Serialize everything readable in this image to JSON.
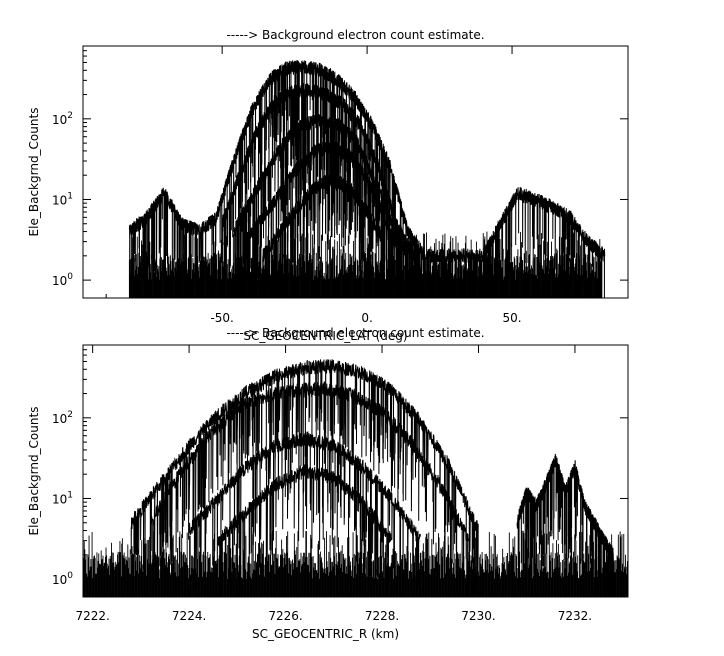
{
  "chart_data": [
    {
      "type": "line",
      "title": "-----> Background electron count estimate.",
      "xlabel": "SC_GEOCENTRIC_LAT (deg)",
      "ylabel": "Ele_Backgrnd_Counts",
      "xscale": "linear",
      "yscale": "log",
      "xlim": [
        -98,
        90
      ],
      "ylim": [
        0.6,
        800
      ],
      "x_ticks": [
        -50,
        0,
        50
      ],
      "x_tick_labels": [
        "-50.",
        "0.",
        "50."
      ],
      "y_ticks": [
        1,
        10,
        100
      ],
      "y_tick_labels": [
        "10^0",
        "10^1",
        "10^2"
      ],
      "grid": false,
      "legend": "none",
      "line_color": "#000000",
      "series": [
        {
          "x": [
            -82,
            -76,
            -70,
            -64,
            -58,
            -52,
            -46,
            -40,
            -34,
            -28,
            -22,
            -16,
            -10,
            -4,
            2,
            8,
            14,
            20,
            30,
            40,
            46,
            52,
            58,
            64,
            70,
            76,
            82
          ],
          "values": [
            4,
            6,
            12,
            5,
            4,
            6,
            30,
            120,
            300,
            420,
            450,
            400,
            300,
            180,
            80,
            25,
            4,
            2,
            2,
            2,
            5,
            12,
            10,
            8,
            6,
            3,
            2
          ]
        },
        {
          "x": [
            -50,
            -44,
            -38,
            -32,
            -26,
            -20,
            -14,
            -8,
            -2,
            4,
            10,
            16
          ],
          "values": [
            5,
            20,
            70,
            160,
            220,
            230,
            200,
            150,
            80,
            25,
            5,
            2
          ]
        },
        {
          "x": [
            -46,
            -40,
            -34,
            -28,
            -22,
            -16,
            -10,
            -4,
            2,
            8,
            14
          ],
          "values": [
            4,
            10,
            25,
            55,
            85,
            95,
            85,
            55,
            20,
            6,
            2
          ]
        },
        {
          "x": [
            -42,
            -36,
            -30,
            -24,
            -18,
            -12,
            -6,
            0,
            6,
            12
          ],
          "values": [
            3,
            6,
            12,
            25,
            40,
            45,
            35,
            18,
            6,
            2
          ]
        },
        {
          "x": [
            -36,
            -30,
            -24,
            -18,
            -12,
            -6,
            0,
            6
          ],
          "values": [
            2,
            4,
            8,
            14,
            18,
            14,
            7,
            3
          ]
        }
      ]
    },
    {
      "type": "line",
      "title": "-----> Background electron count estimate.",
      "xlabel": "SC_GEOCENTRIC_R (km)",
      "ylabel": "Ele_Backgrnd_Counts",
      "xscale": "linear",
      "yscale": "log",
      "xlim": [
        7221.8,
        7233.1
      ],
      "ylim": [
        0.6,
        800
      ],
      "x_ticks": [
        7222,
        7224,
        7226,
        7228,
        7230,
        7232
      ],
      "x_tick_labels": [
        "7222.",
        "7224.",
        "7226.",
        "7228.",
        "7230.",
        "7232."
      ],
      "y_ticks": [
        1,
        10,
        100
      ],
      "y_tick_labels": [
        "10^0",
        "10^1",
        "10^2"
      ],
      "grid": false,
      "legend": "none",
      "line_color": "#000000",
      "series": [
        {
          "x": [
            7222.8,
            7223.4,
            7224.0,
            7224.6,
            7225.2,
            7225.8,
            7226.4,
            7227.0,
            7227.6,
            7228.2,
            7228.8,
            7229.4,
            7230.0
          ],
          "values": [
            5,
            15,
            45,
            110,
            210,
            330,
            420,
            440,
            360,
            220,
            90,
            25,
            4
          ]
        },
        {
          "x": [
            7223.2,
            7223.8,
            7224.4,
            7225.0,
            7225.6,
            7226.2,
            7226.8,
            7227.4,
            7228.0,
            7228.6,
            7229.2,
            7229.8
          ],
          "values": [
            5,
            20,
            60,
            130,
            190,
            220,
            230,
            190,
            120,
            50,
            15,
            3
          ]
        },
        {
          "x": [
            7224.0,
            7224.6,
            7225.2,
            7225.8,
            7226.4,
            7227.0,
            7227.6,
            7228.2,
            7228.8
          ],
          "values": [
            4,
            10,
            25,
            45,
            55,
            45,
            25,
            10,
            3
          ]
        },
        {
          "x": [
            7224.6,
            7225.2,
            7225.8,
            7226.4,
            7227.0,
            7227.6,
            7228.2
          ],
          "values": [
            3,
            7,
            15,
            22,
            18,
            9,
            3
          ]
        },
        {
          "x": [
            7230.8,
            7231.0,
            7231.2,
            7231.4,
            7231.6,
            7231.8,
            7232.0,
            7232.2,
            7232.4,
            7232.6,
            7232.8
          ],
          "values": [
            5,
            12,
            8,
            15,
            30,
            12,
            25,
            8,
            5,
            3,
            2
          ]
        }
      ]
    }
  ]
}
